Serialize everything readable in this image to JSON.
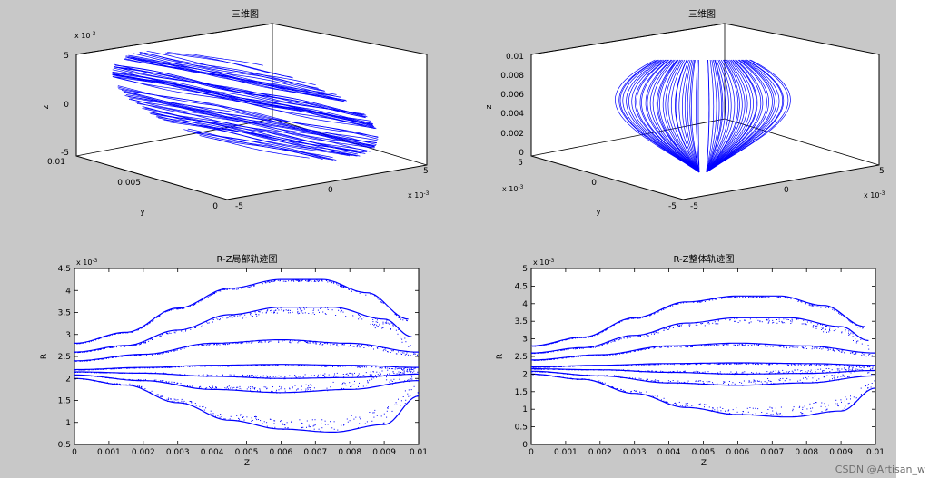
{
  "chart_data": [
    {
      "type": "scatter",
      "title": "三维图",
      "xlabel": "",
      "ylabel": "y",
      "zlabel": "z",
      "z_ticks": [
        "5",
        "0",
        "-5"
      ],
      "z_exponent": "x 10",
      "z_exponent_power": "-3",
      "y_ticks": [
        "0.01",
        "0.005",
        "0"
      ],
      "x_ticks": [
        "-5",
        "0",
        "5"
      ],
      "x_exponent": "x 10",
      "x_exponent_power": "-3",
      "xlim": [
        -0.005,
        0.005
      ],
      "ylim": [
        0,
        0.01
      ],
      "zlim": [
        -0.005,
        0.005
      ],
      "grid": false,
      "note_series": "dense blue helical trajectory lines forming an ellipsoidal cloud"
    },
    {
      "type": "scatter",
      "title": "三维图",
      "xlabel": "",
      "ylabel": "y",
      "zlabel": "z",
      "z_ticks": [
        "0.01",
        "0.008",
        "0.006",
        "0.004",
        "0.002",
        "0"
      ],
      "y_ticks": [
        "5",
        "0",
        "-5"
      ],
      "y_exponent": "x 10",
      "y_exponent_power": "-3",
      "x_ticks": [
        "-5",
        "0",
        "5"
      ],
      "x_exponent": "x 10",
      "x_exponent_power": "-3",
      "xlim": [
        -0.005,
        0.005
      ],
      "ylim": [
        -0.005,
        0.005
      ],
      "zlim": [
        0,
        0.01
      ],
      "grid": false
    },
    {
      "type": "scatter",
      "title": "R-Z局部轨迹图",
      "xlabel": "Z",
      "ylabel": "R",
      "x_ticks": [
        "0",
        "0.001",
        "0.002",
        "0.003",
        "0.004",
        "0.005",
        "0.006",
        "0.007",
        "0.008",
        "0.009",
        "0.01"
      ],
      "y_ticks": [
        "0.5",
        "1",
        "1.5",
        "2",
        "2.5",
        "3",
        "3.5",
        "4",
        "4.5"
      ],
      "y_exponent": "x 10",
      "y_exponent_power": "-3",
      "xlim": [
        0,
        0.01
      ],
      "ylim": [
        0.0005,
        0.0045
      ],
      "grid": false,
      "series": [
        {
          "x": [
            0,
            0.0015,
            0.003,
            0.0045,
            0.006,
            0.0072,
            0.0085,
            0.0097
          ],
          "y": [
            2.8,
            3.05,
            3.6,
            4.05,
            4.25,
            4.25,
            3.95,
            3.35
          ]
        },
        {
          "x": [
            0,
            0.0015,
            0.003,
            0.0045,
            0.006,
            0.0075,
            0.009,
            0.0098
          ],
          "y": [
            2.6,
            2.75,
            3.1,
            3.45,
            3.62,
            3.62,
            3.35,
            2.95
          ]
        },
        {
          "x": [
            0,
            0.002,
            0.004,
            0.006,
            0.008,
            0.01
          ],
          "y": [
            2.4,
            2.55,
            2.8,
            2.88,
            2.8,
            2.6
          ]
        },
        {
          "x": [
            0,
            0.002,
            0.004,
            0.006,
            0.008,
            0.01
          ],
          "y": [
            2.2,
            2.25,
            2.3,
            2.32,
            2.3,
            2.25
          ]
        },
        {
          "x": [
            0,
            0.002,
            0.004,
            0.006,
            0.008,
            0.01
          ],
          "y": [
            2.15,
            2.12,
            2.05,
            2.0,
            2.02,
            2.1
          ]
        },
        {
          "x": [
            0,
            0.002,
            0.004,
            0.006,
            0.008,
            0.01
          ],
          "y": [
            2.08,
            1.95,
            1.75,
            1.68,
            1.75,
            1.95
          ]
        },
        {
          "x": [
            0,
            0.0015,
            0.003,
            0.0045,
            0.006,
            0.0075,
            0.009,
            0.01
          ],
          "y": [
            2.0,
            1.85,
            1.45,
            1.05,
            0.85,
            0.78,
            0.95,
            1.6
          ]
        }
      ]
    },
    {
      "type": "scatter",
      "title": "R-Z整体轨迹图",
      "xlabel": "Z",
      "ylabel": "R",
      "x_ticks": [
        "0",
        "0.001",
        "0.002",
        "0.003",
        "0.004",
        "0.005",
        "0.006",
        "0.007",
        "0.008",
        "0.009",
        "0.01"
      ],
      "y_ticks": [
        "0",
        "0.5",
        "1",
        "1.5",
        "2",
        "2.5",
        "3",
        "3.5",
        "4",
        "4.5",
        "5"
      ],
      "y_exponent": "x 10",
      "y_exponent_power": "-3",
      "xlim": [
        0,
        0.01
      ],
      "ylim": [
        0,
        0.005
      ],
      "grid": false,
      "series": [
        {
          "x": [
            0,
            0.0015,
            0.003,
            0.0045,
            0.006,
            0.0072,
            0.0085,
            0.0097
          ],
          "y": [
            2.8,
            3.05,
            3.6,
            4.05,
            4.22,
            4.22,
            3.95,
            3.35
          ]
        },
        {
          "x": [
            0,
            0.0015,
            0.003,
            0.0045,
            0.006,
            0.0075,
            0.009,
            0.0098
          ],
          "y": [
            2.6,
            2.75,
            3.1,
            3.45,
            3.6,
            3.6,
            3.35,
            2.95
          ]
        },
        {
          "x": [
            0,
            0.002,
            0.004,
            0.006,
            0.008,
            0.01
          ],
          "y": [
            2.4,
            2.55,
            2.8,
            2.88,
            2.8,
            2.6
          ]
        },
        {
          "x": [
            0,
            0.002,
            0.004,
            0.006,
            0.008,
            0.01
          ],
          "y": [
            2.2,
            2.25,
            2.3,
            2.32,
            2.3,
            2.25
          ]
        },
        {
          "x": [
            0,
            0.002,
            0.004,
            0.006,
            0.008,
            0.01
          ],
          "y": [
            2.15,
            2.12,
            2.05,
            2.0,
            2.02,
            2.1
          ]
        },
        {
          "x": [
            0,
            0.002,
            0.004,
            0.006,
            0.008,
            0.01
          ],
          "y": [
            2.08,
            1.95,
            1.75,
            1.68,
            1.75,
            1.95
          ]
        },
        {
          "x": [
            0,
            0.0015,
            0.003,
            0.0045,
            0.006,
            0.0075,
            0.009,
            0.01
          ],
          "y": [
            2.0,
            1.85,
            1.45,
            1.05,
            0.85,
            0.78,
            0.95,
            1.6
          ]
        }
      ]
    }
  ],
  "colors": {
    "figure_bg": "#c8c8c8",
    "series": "#0000ff",
    "axes_bg": "#ffffff"
  },
  "watermark": "CSDN @Artisan_w"
}
